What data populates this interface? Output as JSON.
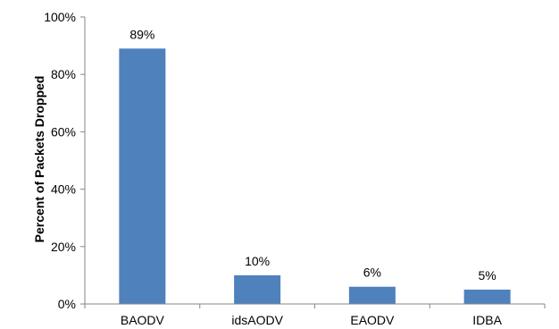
{
  "chart_data": {
    "type": "bar",
    "categories": [
      "BAODV",
      "idsAODV",
      "EAODV",
      "IDBA"
    ],
    "values": [
      89,
      10,
      6,
      5
    ],
    "value_labels": [
      "89%",
      "10%",
      "6%",
      "5%"
    ],
    "ylabel": "Percent of Packets Dropped",
    "ylim": [
      0,
      100
    ],
    "y_ticks": [
      0,
      20,
      40,
      60,
      80,
      100
    ],
    "y_tick_labels": [
      "0%",
      "20%",
      "40%",
      "60%",
      "80%",
      "100%"
    ],
    "grid": false,
    "legend": "none",
    "bar_color": "#4f81bd"
  }
}
